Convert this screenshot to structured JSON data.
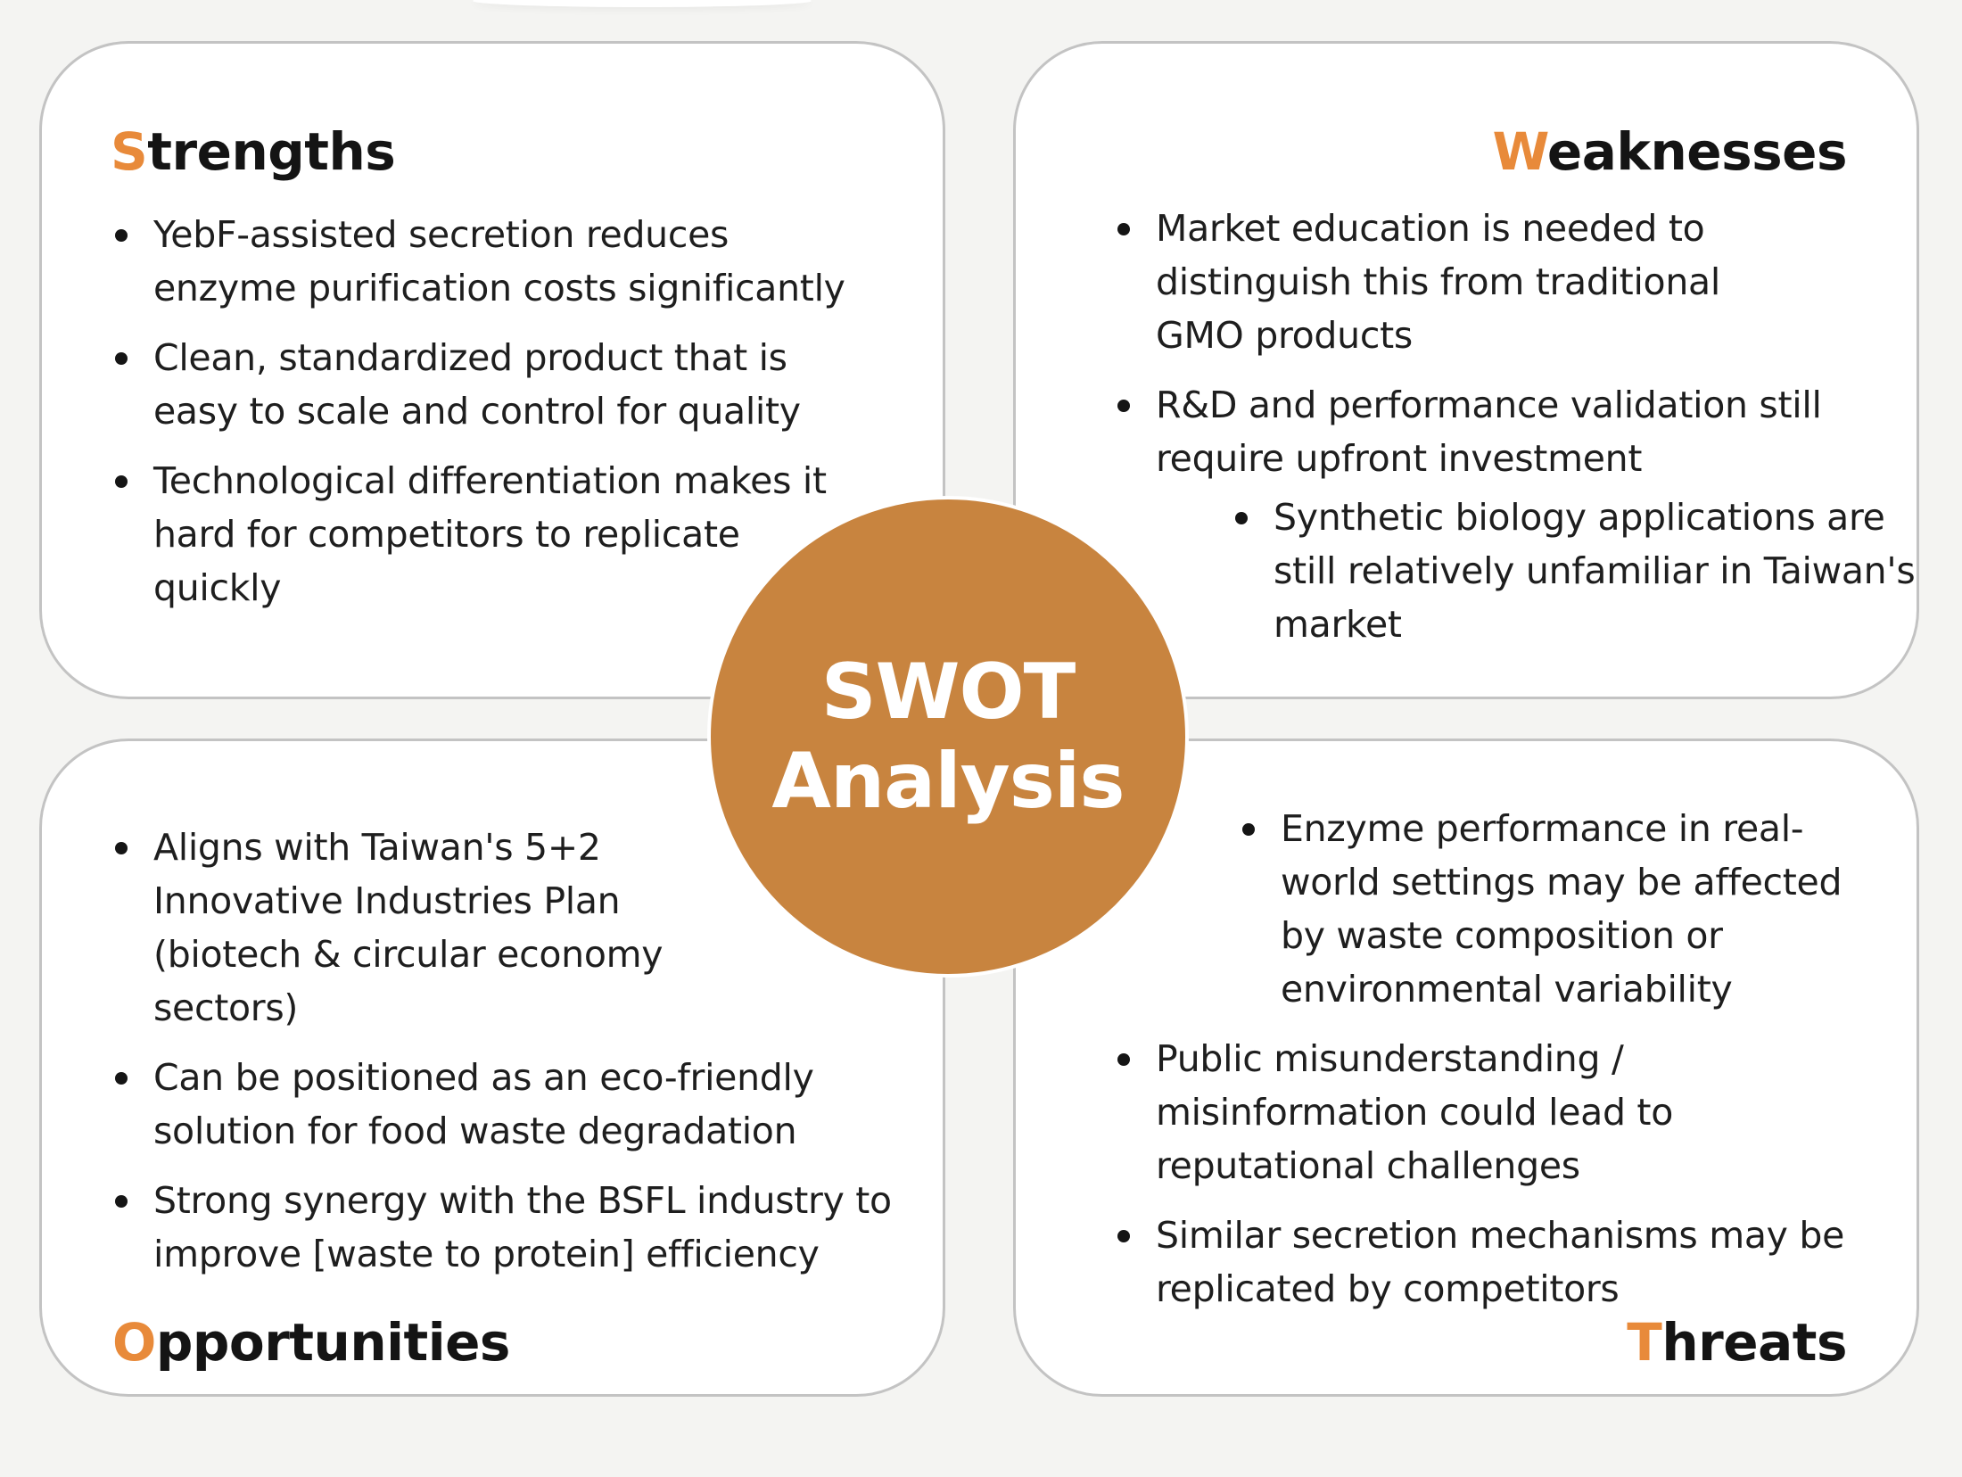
{
  "swot": {
    "center": {
      "line1": "SWOT",
      "line2": "Analysis"
    },
    "strengths": {
      "title_initial": "S",
      "title_rest": "trengths",
      "items": [
        "YebF-assisted secretion reduces enzyme purification costs significantly",
        "Clean, standardized product that is easy to scale and control for quality",
        "Technological differentiation makes it hard for competitors to replicate quickly"
      ]
    },
    "weaknesses": {
      "title_initial": "W",
      "title_rest": "eaknesses",
      "items": [
        "Market education is needed to distinguish this from traditional GMO products",
        "R&D and performance validation still require upfront investment",
        "Synthetic biology applications are still relatively unfamiliar in Taiwan's market"
      ]
    },
    "opportunities": {
      "title_initial": "O",
      "title_rest": "pportunities",
      "items": [
        "Aligns with Taiwan's 5+2 Innovative Industries Plan (biotech & circular economy sectors)",
        "Can be positioned as an eco-friendly solution for food waste degradation",
        "Strong synergy with the BSFL industry to improve [waste to protein] efficiency"
      ]
    },
    "threats": {
      "title_initial": "T",
      "title_rest": "hreats",
      "items": [
        "Enzyme performance in real-world settings may be affected by waste composition or environmental variability",
        "Public misunderstanding / misinformation could lead to reputational challenges",
        "Similar secretion mechanisms may be replicated by competitors"
      ]
    }
  },
  "colors": {
    "accent": "#e88a3a",
    "circle": "#c8843f",
    "card_border": "#c3c3c3",
    "background": "#f4f4f2"
  }
}
